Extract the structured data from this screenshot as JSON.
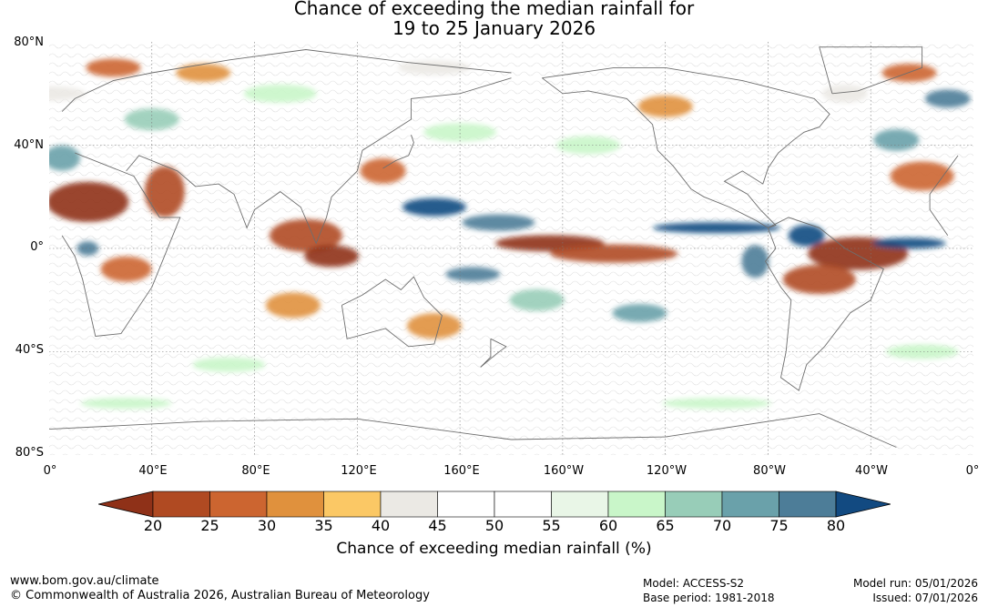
{
  "title": {
    "line1": "Chance of exceeding the median rainfall for",
    "line2": "19 to 25 January 2026"
  },
  "map": {
    "lat_labels": [
      "80°N",
      "40°N",
      "0°",
      "40°S",
      "80°S"
    ],
    "lon_labels": [
      "0°",
      "40°E",
      "80°E",
      "120°E",
      "160°E",
      "160°W",
      "120°W",
      "80°W",
      "40°W",
      "0°"
    ],
    "icons": [
      "world-map-rainfall-probability"
    ]
  },
  "colorbar": {
    "label": "Chance of exceeding median rainfall (%)",
    "ticks": [
      "20",
      "25",
      "30",
      "35",
      "40",
      "45",
      "50",
      "55",
      "60",
      "65",
      "70",
      "75",
      "80"
    ],
    "colors": [
      "#8f3118",
      "#b04a22",
      "#cc6530",
      "#e0913d",
      "#fbc865",
      "#ebe9e4",
      "#ffffff",
      "#ffffff",
      "#e9f6e7",
      "#c9f6c9",
      "#98cdb8",
      "#6aa1aa",
      "#4d7d98",
      "#124a81"
    ]
  },
  "footer": {
    "url": "www.bom.gov.au/climate",
    "copyright": "© Commonwealth of Australia 2026, Australian Bureau of Meteorology",
    "model": "Model: ACCESS-S2",
    "base_period": "Base period: 1981-2018",
    "model_run": "Model run: 05/01/2026",
    "issued": "Issued: 07/01/2026"
  }
}
